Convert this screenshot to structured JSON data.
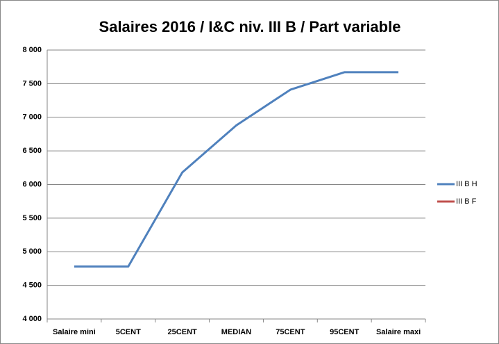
{
  "chart_data": {
    "type": "line",
    "title": "Salaires 2016 / I&C niv. III B / Part variable",
    "categories": [
      "Salaire mini",
      "5CENT",
      "25CENT",
      "MEDIAN",
      "75CENT",
      "95CENT",
      "Salaire maxi"
    ],
    "series": [
      {
        "name": "III B H",
        "color": "#4f81bd",
        "values": [
          4780,
          4780,
          6180,
          6880,
          7410,
          7670,
          7670
        ]
      },
      {
        "name": "III B F",
        "color": "#c0504d",
        "values": [
          null,
          null,
          null,
          null,
          null,
          null,
          null
        ]
      }
    ],
    "ylim": [
      4000,
      8000
    ],
    "yticks": [
      {
        "value": 4000,
        "label": "4 000"
      },
      {
        "value": 4500,
        "label": "4 500"
      },
      {
        "value": 5000,
        "label": "5 000"
      },
      {
        "value": 5500,
        "label": "5 500"
      },
      {
        "value": 6000,
        "label": "6 000"
      },
      {
        "value": 6500,
        "label": "6 500"
      },
      {
        "value": 7000,
        "label": "7 000"
      },
      {
        "value": 7500,
        "label": "7 500"
      },
      {
        "value": 8000,
        "label": "8 000"
      }
    ],
    "grid": true,
    "legend": "right"
  }
}
